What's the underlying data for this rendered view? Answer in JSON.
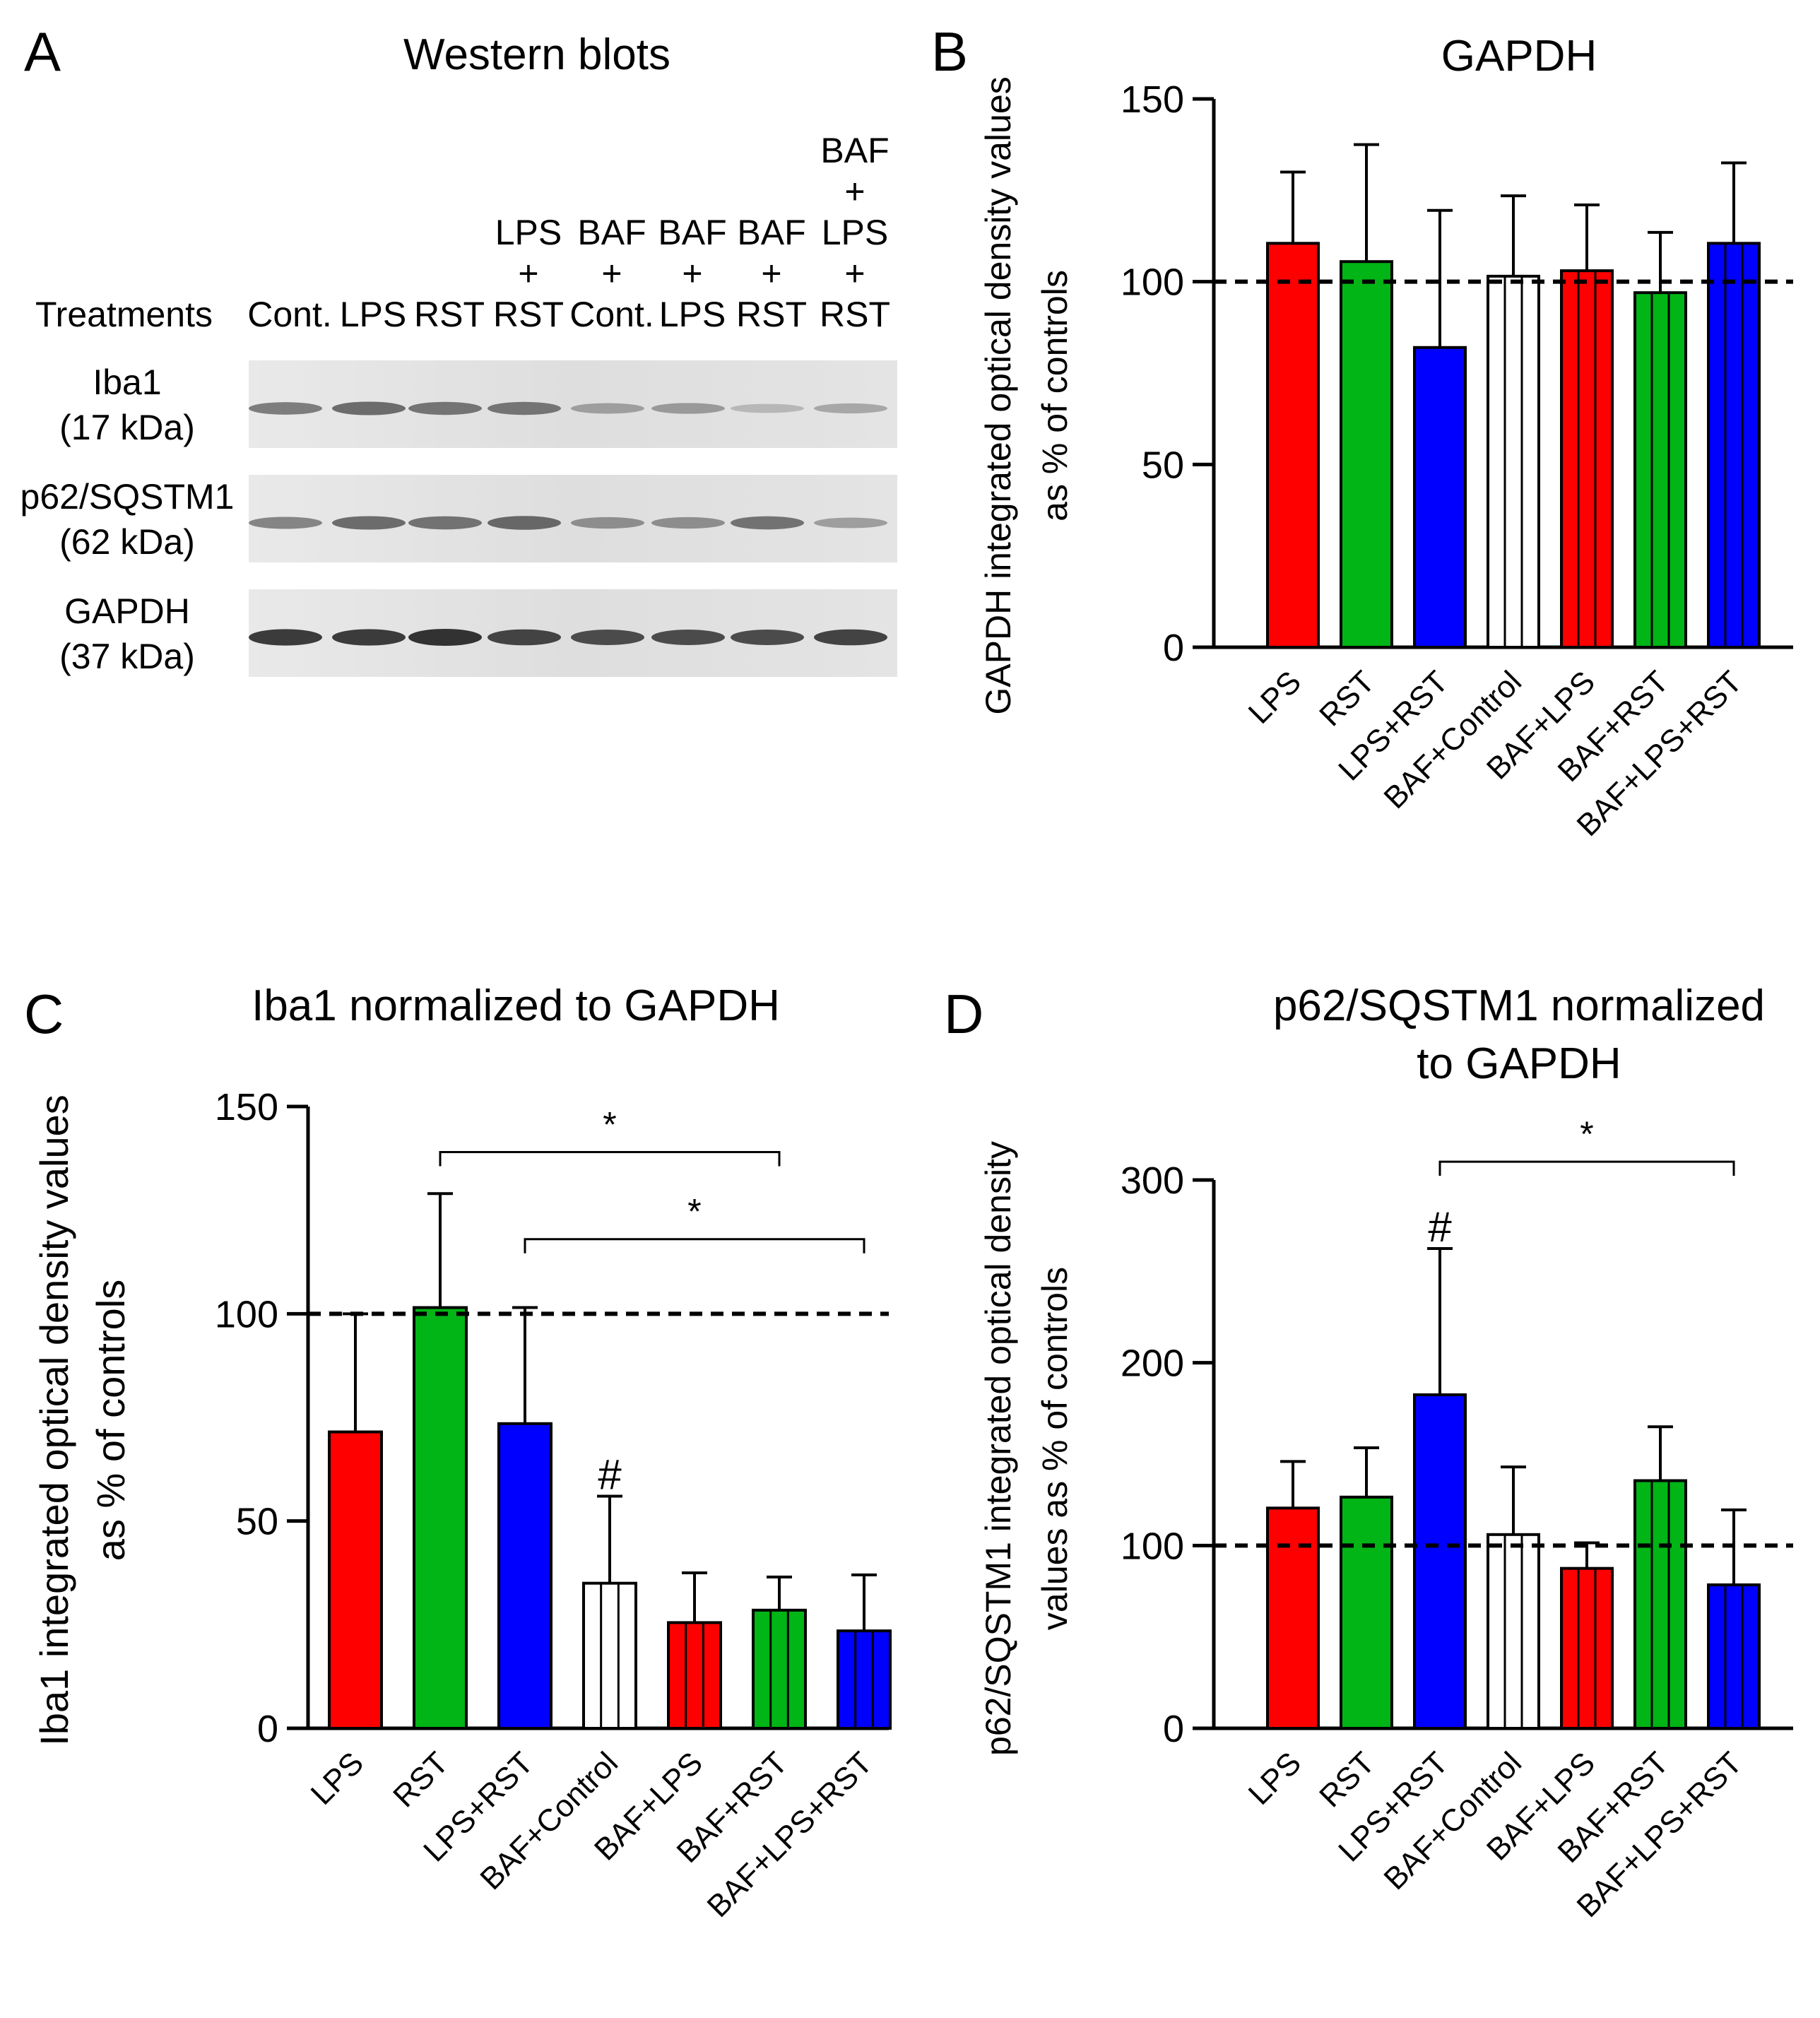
{
  "panel_letters": {
    "a": "A",
    "b": "B",
    "c": "C",
    "d": "D"
  },
  "colors": {
    "red": "#ff0000",
    "green": "#00b515",
    "blue": "#0000ff",
    "white": "#ffffff"
  },
  "western": {
    "title": "Western blots",
    "treatments_label": "Treatments",
    "lanes": [
      {
        "lines": [
          "Cont."
        ]
      },
      {
        "lines": [
          "LPS"
        ]
      },
      {
        "lines": [
          "RST"
        ]
      },
      {
        "lines": [
          "LPS",
          "+",
          "RST"
        ]
      },
      {
        "lines": [
          "BAF",
          "+",
          "Cont."
        ]
      },
      {
        "lines": [
          "BAF",
          "+",
          "LPS"
        ]
      },
      {
        "lines": [
          "BAF",
          "+",
          "RST"
        ]
      },
      {
        "lines": [
          "BAF",
          "+",
          "LPS",
          "+",
          "RST"
        ]
      }
    ],
    "blots": [
      {
        "protein": "Iba1",
        "mw": "(17 kDa)",
        "intensities": [
          0.55,
          0.65,
          0.6,
          0.6,
          0.35,
          0.38,
          0.2,
          0.3
        ]
      },
      {
        "protein": "p62/SQSTM1",
        "mw": "(62 kDa)",
        "intensities": [
          0.5,
          0.65,
          0.62,
          0.68,
          0.45,
          0.45,
          0.62,
          0.35
        ]
      },
      {
        "protein": "GAPDH",
        "mw": "(37 kDa)",
        "intensities": [
          0.95,
          0.95,
          1.0,
          0.9,
          0.85,
          0.85,
          0.85,
          0.9
        ]
      }
    ]
  },
  "chart_data": [
    {
      "id": "B",
      "type": "bar",
      "title": "GAPDH",
      "ylabel": "GAPDH integrated optical density values as % of controls",
      "ylabel_lines": [
        "GAPDH integrated optical density values",
        "as % of controls"
      ],
      "ylim": [
        0,
        150
      ],
      "yticks": [
        0,
        50,
        100,
        150
      ],
      "reference_line": 100,
      "categories": [
        "LPS",
        "RST",
        "LPS+RST",
        "BAF+Control",
        "BAF+LPS",
        "BAF+RST",
        "BAF+LPS+RST"
      ],
      "values": [
        110.5,
        105.5,
        82,
        101.5,
        103,
        97,
        110.5
      ],
      "error_upper": [
        130,
        137.5,
        119.5,
        123.5,
        121,
        113.5,
        132.5
      ],
      "fills": [
        "red",
        "green",
        "blue",
        "white",
        "red",
        "green",
        "blue"
      ],
      "hatched": [
        false,
        false,
        false,
        true,
        true,
        true,
        true
      ],
      "hash_marks": [],
      "significance": []
    },
    {
      "id": "C",
      "type": "bar",
      "title": "Iba1 normalized to GAPDH",
      "ylabel": "Iba1 integrated optical density values as % of controls",
      "ylabel_lines": [
        "Iba1 integrated optical density values",
        "as % of controls"
      ],
      "ylim": [
        0,
        150
      ],
      "yticks": [
        0,
        50,
        100,
        150
      ],
      "reference_line": 100,
      "categories": [
        "LPS",
        "RST",
        "LPS+RST",
        "BAF+Control",
        "BAF+LPS",
        "BAF+RST",
        "BAF+LPS+RST"
      ],
      "values": [
        71.5,
        101.5,
        73.5,
        35,
        25.5,
        28.5,
        23.5
      ],
      "error_upper": [
        100,
        129,
        101.5,
        56,
        37.5,
        36.5,
        37
      ],
      "fills": [
        "red",
        "green",
        "blue",
        "white",
        "red",
        "green",
        "blue"
      ],
      "hatched": [
        false,
        false,
        false,
        true,
        true,
        true,
        true
      ],
      "hash_marks": [
        {
          "bar": 3,
          "label": "#"
        }
      ],
      "significance": [
        {
          "from": 1,
          "to": 5,
          "y": 139,
          "label": "*"
        },
        {
          "from": 2,
          "to": 6,
          "y": 118,
          "label": "*"
        }
      ]
    },
    {
      "id": "D",
      "type": "bar",
      "title": "p62/SQSTM1 normalized to GAPDH",
      "title_lines": [
        "p62/SQSTM1 normalized",
        "to GAPDH"
      ],
      "ylabel": "p62/SQSTM1 integrated optical density values as % of controls",
      "ylabel_lines": [
        "p62/SQSTM1 integrated optical density",
        "values as % of controls"
      ],
      "ylim": [
        0,
        300
      ],
      "yticks": [
        0,
        100,
        200,
        300
      ],
      "reference_line": 100,
      "categories": [
        "LPS",
        "RST",
        "LPS+RST",
        "BAF+Control",
        "BAF+LPS",
        "BAF+RST",
        "BAF+LPS+RST"
      ],
      "values": [
        120.5,
        126.5,
        182.5,
        106,
        87.5,
        135.5,
        78.5
      ],
      "error_upper": [
        146,
        153.5,
        262.5,
        143,
        101.5,
        165,
        119.5
      ],
      "fills": [
        "red",
        "green",
        "blue",
        "white",
        "red",
        "green",
        "blue"
      ],
      "hatched": [
        false,
        false,
        false,
        true,
        true,
        true,
        true
      ],
      "hash_marks": [
        {
          "bar": 2,
          "label": "#"
        }
      ],
      "significance": [
        {
          "from": 2,
          "to": 6,
          "y": 310,
          "label": "*"
        }
      ]
    }
  ]
}
